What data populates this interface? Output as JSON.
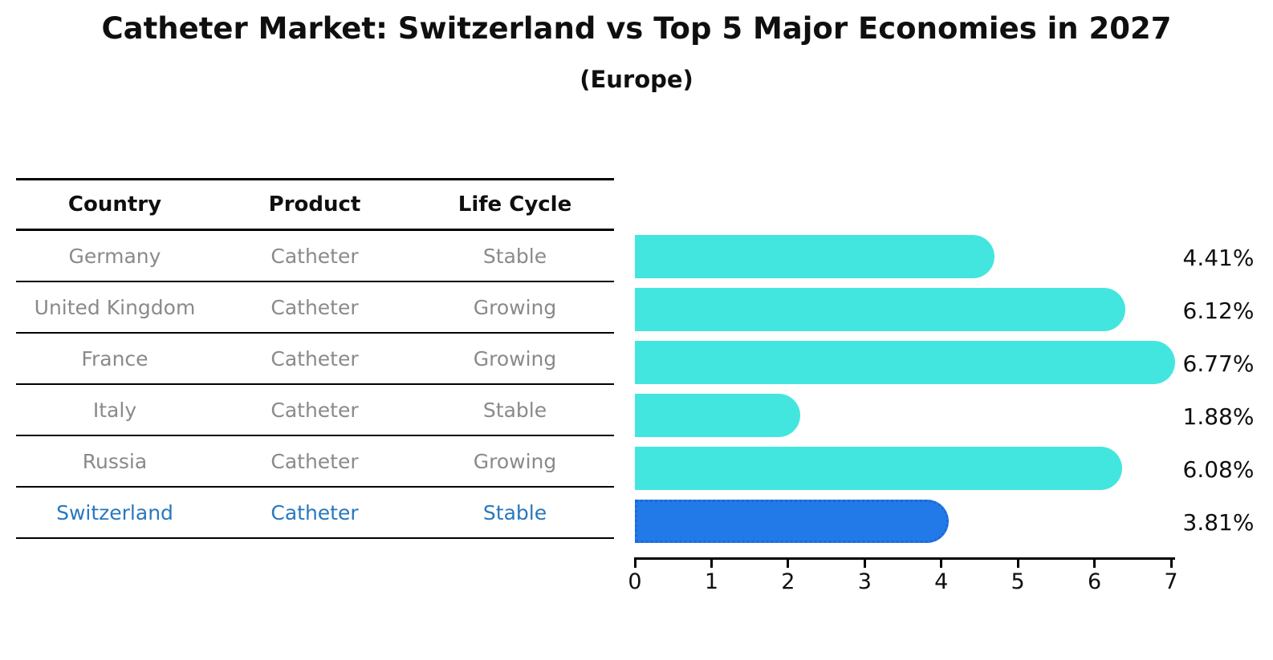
{
  "header": {
    "title": "Catheter Market: Switzerland vs Top 5 Major Economies in 2027",
    "subtitle": "(Europe)"
  },
  "table": {
    "columns": [
      "Country",
      "Product",
      "Life Cycle"
    ],
    "rows": [
      {
        "country": "Germany",
        "product": "Catheter",
        "life_cycle": "Stable",
        "highlight": false
      },
      {
        "country": "United Kingdom",
        "product": "Catheter",
        "life_cycle": "Growing",
        "highlight": false
      },
      {
        "country": "France",
        "product": "Catheter",
        "life_cycle": "Growing",
        "highlight": false
      },
      {
        "country": "Italy",
        "product": "Catheter",
        "life_cycle": "Stable",
        "highlight": false
      },
      {
        "country": "Russia",
        "product": "Catheter",
        "life_cycle": "Growing",
        "highlight": false
      },
      {
        "country": "Switzerland",
        "product": "Catheter",
        "life_cycle": "Stable",
        "highlight": true
      }
    ]
  },
  "chart_data": {
    "type": "bar",
    "orientation": "horizontal",
    "title": "Catheter Market: Switzerland vs Top 5 Major Economies in 2027 (Europe)",
    "categories": [
      "Germany",
      "United Kingdom",
      "France",
      "Italy",
      "Russia",
      "Switzerland"
    ],
    "values": [
      4.41,
      6.12,
      6.77,
      1.88,
      6.08,
      3.81
    ],
    "value_labels": [
      "4.41%",
      "6.12%",
      "6.77%",
      "1.88%",
      "6.08%",
      "3.81%"
    ],
    "highlighted_category": "Switzerland",
    "xlim": [
      0,
      7
    ],
    "x_ticks": [
      "0",
      "1",
      "2",
      "3",
      "4",
      "5",
      "6",
      "7"
    ],
    "grid": false,
    "legend": "none",
    "colors": {
      "default_bar": "#43E6DF",
      "highlight_bar": "#2279E8",
      "highlight_border": "#1E68D8",
      "highlight_text": "#2878BE",
      "row_text": "#8A8A8A",
      "axis_text": "#0F0F0F"
    }
  }
}
